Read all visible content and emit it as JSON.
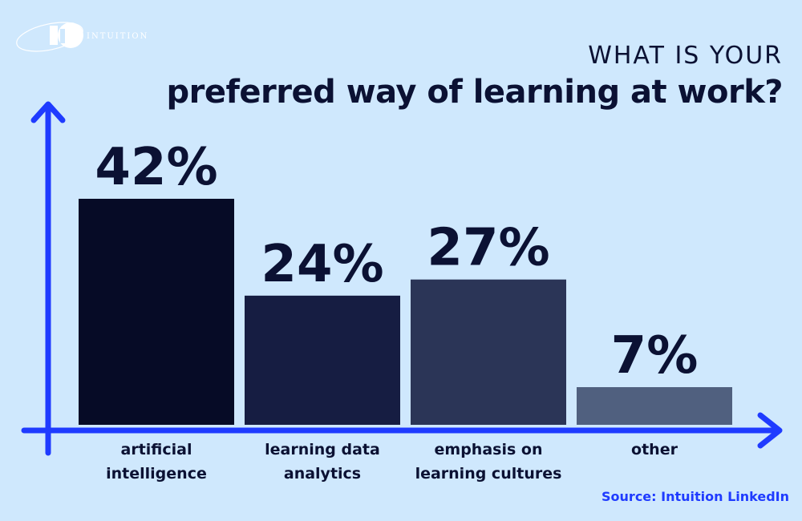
{
  "brand": {
    "name": "INTUITION"
  },
  "title": {
    "line1": "WHAT IS YOUR",
    "line2": "preferred way of learning at work?"
  },
  "source": "Source: Intuition LinkedIn",
  "colors": {
    "background": "#cfe8fd",
    "axis": "#1f3bff",
    "text": "#0b1133",
    "bars": [
      "#060b26",
      "#161d42",
      "#2b3557",
      "#50607f"
    ]
  },
  "chart_data": {
    "type": "bar",
    "categories": [
      [
        "artificial",
        "intelligence"
      ],
      [
        "learning data",
        "analytics"
      ],
      [
        "emphasis on",
        "learning cultures"
      ],
      [
        "other"
      ]
    ],
    "values": [
      42,
      24,
      27,
      7
    ],
    "value_labels": [
      "42%",
      "24%",
      "27%",
      "7%"
    ],
    "ylim": [
      0,
      50
    ],
    "grid": false,
    "legend": "none"
  }
}
